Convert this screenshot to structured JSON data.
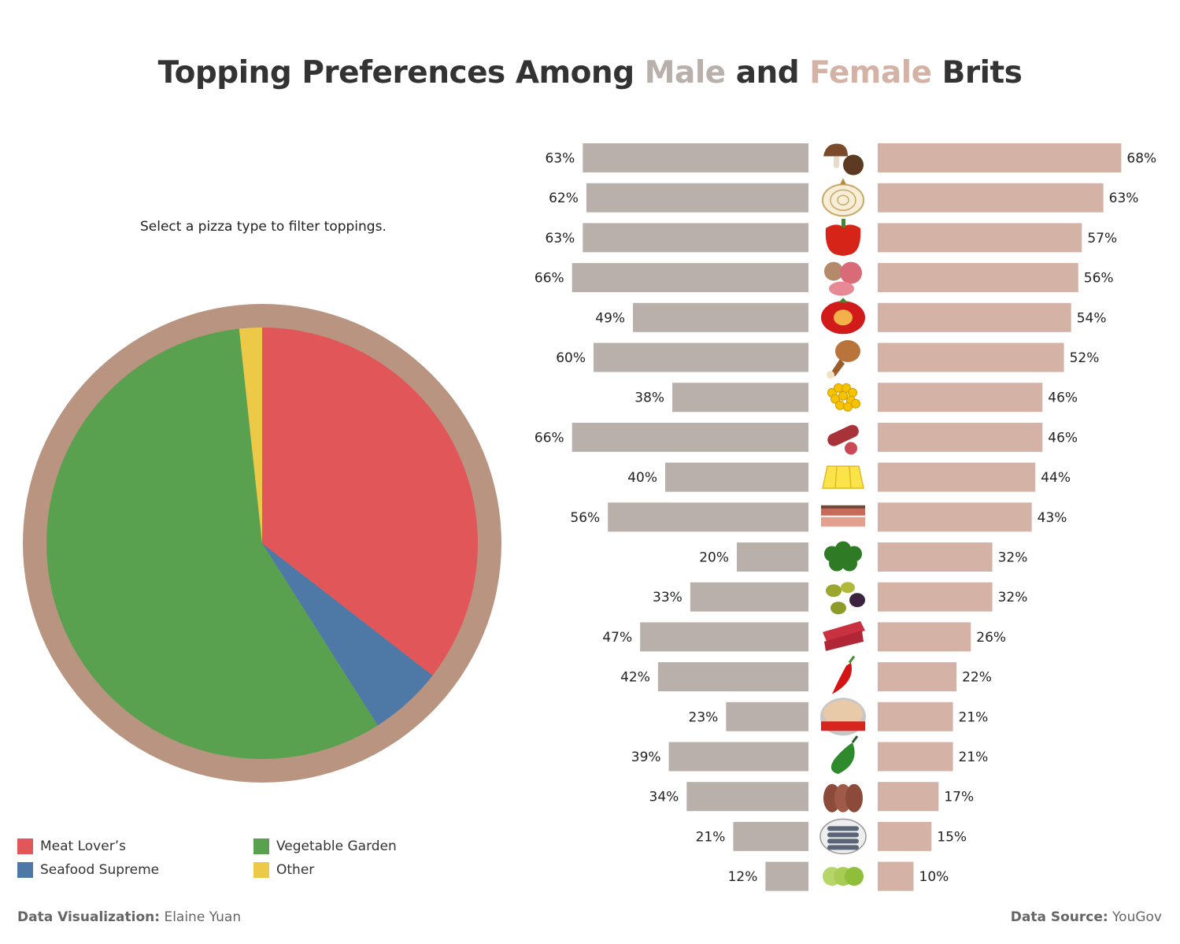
{
  "title": {
    "prefix": "Topping Preferences Among ",
    "male": "Male",
    "middle": " and ",
    "female": "Female",
    "suffix": " Brits"
  },
  "instruction": "Select a pizza type to filter toppings.",
  "colors": {
    "male": "#bab0ab",
    "female": "#d4b3a6",
    "ring": "#b89481",
    "meat": "#e15759",
    "seafood": "#4e79a7",
    "vegetable": "#59a14f",
    "other": "#edc948"
  },
  "legend": [
    {
      "label": "Meat Lover’s",
      "color": "#e15759"
    },
    {
      "label": "Vegetable Garden",
      "color": "#59a14f"
    },
    {
      "label": "Seafood Supreme",
      "color": "#4e79a7"
    },
    {
      "label": "Other",
      "color": "#edc948"
    }
  ],
  "chart_data": [
    {
      "type": "pie",
      "categories": [
        "Meat Lover’s",
        "Seafood Supreme",
        "Vegetable Garden",
        "Other"
      ],
      "values": [
        35.5,
        5.5,
        57.3,
        1.7
      ]
    },
    {
      "type": "bar",
      "orientation": "diverging-horizontal",
      "categories": [
        "mushroom-icon",
        "onion-icon",
        "red-pepper-icon",
        "ham-icon",
        "tomato-icon",
        "chicken-icon",
        "sweetcorn-icon",
        "pepperoni-icon",
        "pineapple-icon",
        "bacon-icon",
        "broccoli-icon",
        "olives-icon",
        "beef-icon",
        "chilli-icon",
        "tuna-icon",
        "jalapeno-icon",
        "meatballs-icon",
        "anchovies-icon",
        "avocado-icon"
      ],
      "series": [
        {
          "name": "Male",
          "values": [
            63,
            62,
            63,
            66,
            49,
            60,
            38,
            66,
            40,
            56,
            20,
            33,
            47,
            42,
            23,
            39,
            34,
            21,
            12
          ]
        },
        {
          "name": "Female",
          "values": [
            68,
            63,
            57,
            56,
            54,
            52,
            46,
            46,
            44,
            43,
            32,
            32,
            26,
            22,
            21,
            21,
            17,
            15,
            10
          ]
        }
      ],
      "unit": "%"
    }
  ],
  "footer": {
    "left_label": "Data Visualization:",
    "left_value": " Elaine Yuan",
    "right_label": "Data Source:",
    "right_value": " YouGov"
  }
}
